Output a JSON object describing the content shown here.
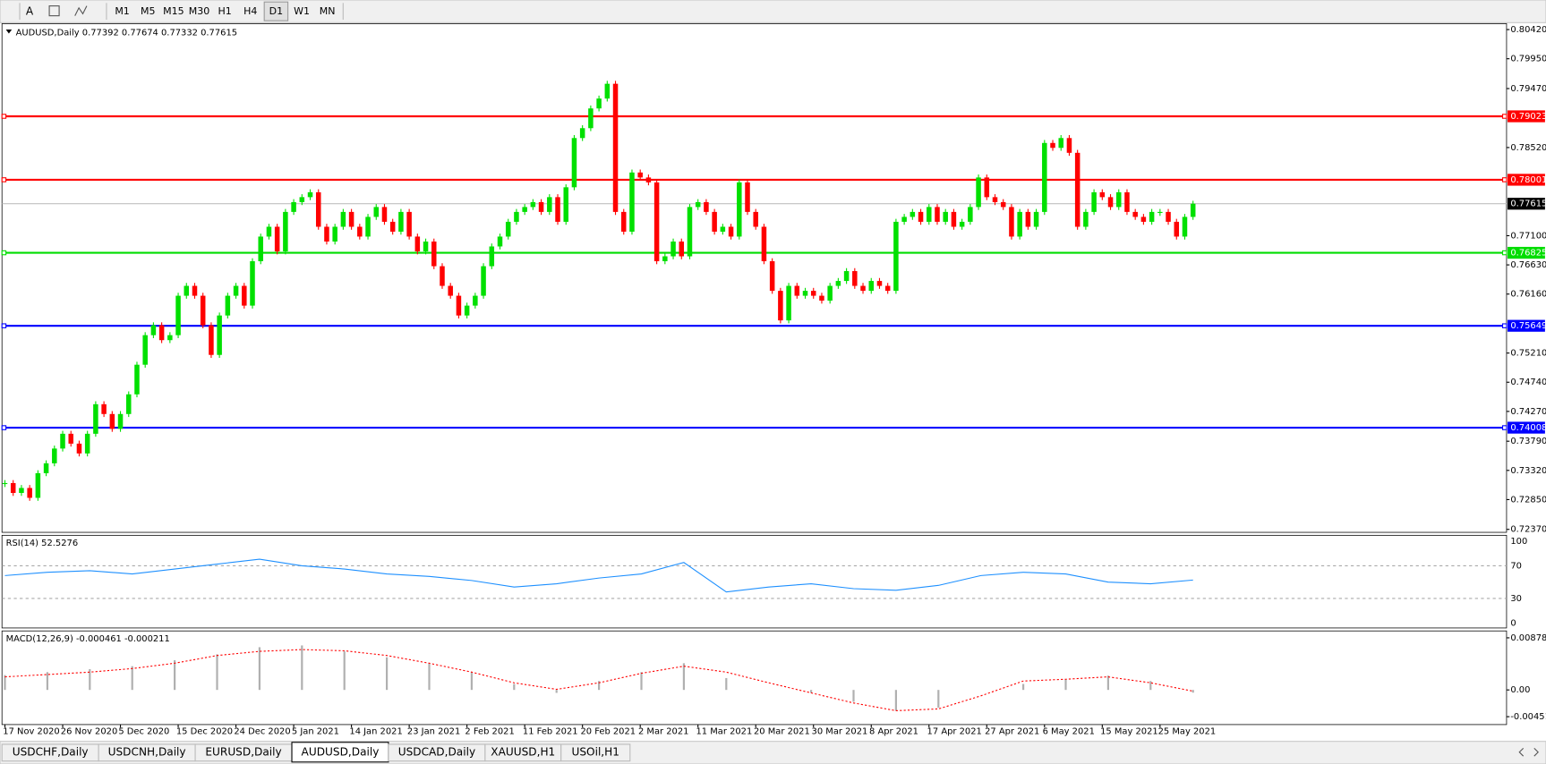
{
  "toolbar": {
    "tools": [
      "A"
    ],
    "timeframes": [
      "M1",
      "M5",
      "M15",
      "M30",
      "H1",
      "H4",
      "D1",
      "W1",
      "MN"
    ],
    "active": 6
  },
  "chart": {
    "header": "AUDUSD,Daily  0.77392 0.77674 0.77332 0.77615",
    "ylim": [
      0.7237,
      0.8042
    ],
    "yticks": [
      {
        "value": 0.8042,
        "label": "0.80420"
      },
      {
        "value": 0.7995,
        "label": "0.79950"
      },
      {
        "value": 0.7947,
        "label": "0.79470"
      },
      {
        "value": 0.7852,
        "label": "0.78520"
      },
      {
        "value": 0.771,
        "label": "0.77100"
      },
      {
        "value": 0.7663,
        "label": "0.76630"
      },
      {
        "value": 0.7616,
        "label": "0.76160"
      },
      {
        "value": 0.7521,
        "label": "0.75210"
      },
      {
        "value": 0.7474,
        "label": "0.74740"
      },
      {
        "value": 0.7427,
        "label": "0.74270"
      },
      {
        "value": 0.7379,
        "label": "0.73790"
      },
      {
        "value": 0.7332,
        "label": "0.73320"
      },
      {
        "value": 0.7285,
        "label": "0.72850"
      },
      {
        "value": 0.7237,
        "label": "0.72370"
      }
    ],
    "levels": [
      {
        "value": 0.79023,
        "color": "#ff0000"
      },
      {
        "value": 0.78001,
        "color": "#ff0000"
      },
      {
        "value": 0.76825,
        "color": "#00dd00"
      },
      {
        "value": 0.75649,
        "color": "#0000ff"
      },
      {
        "value": 0.74008,
        "color": "#0000ff"
      }
    ],
    "current": 0.77615,
    "candles": [
      0.73116,
      0.72957,
      0.73037,
      0.72878,
      0.73275,
      0.73434,
      0.73672,
      0.7391,
      0.73751,
      0.73593,
      0.7391,
      0.74386,
      0.74228,
      0.73989,
      0.74228,
      0.74545,
      0.75022,
      0.75498,
      0.75657,
      0.75418,
      0.75498,
      0.76133,
      0.76292,
      0.76133,
      0.75657,
      0.7518,
      0.75815,
      0.76133,
      0.76292,
      0.75974,
      0.76689,
      0.77086,
      0.77244,
      0.76847,
      0.77483,
      0.77641,
      0.77721,
      0.778,
      0.77244,
      0.77006,
      0.77244,
      0.77483,
      0.77244,
      0.77086,
      0.77403,
      0.77562,
      0.77324,
      0.77165,
      0.77483,
      0.77086,
      0.76847,
      0.77006,
      0.76609,
      0.76292,
      0.76133,
      0.75815,
      0.75974,
      0.76133,
      0.76609,
      0.76927,
      0.77086,
      0.77324,
      0.77483,
      0.77562,
      0.77641,
      0.77483,
      0.77721,
      0.77324,
      0.7788,
      0.78673,
      0.78832,
      0.7915,
      0.79309,
      0.79547,
      0.77483,
      0.77165,
      0.78118,
      0.78038,
      0.77959,
      0.76689,
      0.76768,
      0.77006,
      0.76768,
      0.77562,
      0.77641,
      0.77483,
      0.77165,
      0.77244,
      0.77086,
      0.77959,
      0.77483,
      0.77244,
      0.76689,
      0.76212,
      0.75736,
      0.76292,
      0.76133,
      0.76212,
      0.76133,
      0.76054,
      0.76292,
      0.76371,
      0.7653,
      0.76292,
      0.76212,
      0.76371,
      0.76292,
      0.76212,
      0.77324,
      0.77403,
      0.77483,
      0.77324,
      0.77562,
      0.77324,
      0.77483,
      0.77244,
      0.77324,
      0.77562,
      0.78038,
      0.77721,
      0.77641,
      0.77562,
      0.77086,
      0.77483,
      0.77244,
      0.77483,
      0.78594,
      0.78515,
      0.78673,
      0.78435,
      0.77244,
      0.77483,
      0.778,
      0.77721,
      0.77562,
      0.778,
      0.77483,
      0.77403,
      0.77324,
      0.77483,
      0.77483,
      0.77324,
      0.77086,
      0.77403,
      0.77615
    ],
    "dates": [
      "17 Nov 2020",
      "26 Nov 2020",
      "5 Dec 2020",
      "15 Dec 2020",
      "24 Dec 2020",
      "5 Jan 2021",
      "14 Jan 2021",
      "23 Jan 2021",
      "2 Feb 2021",
      "11 Feb 2021",
      "20 Feb 2021",
      "2 Mar 2021",
      "11 Mar 2021",
      "20 Mar 2021",
      "30 Mar 2021",
      "8 Apr 2021",
      "17 Apr 2021",
      "27 Apr 2021",
      "6 May 2021",
      "15 May 2021",
      "25 May 2021"
    ]
  },
  "rsi": {
    "header": "RSI(14) 52.5276",
    "ylim": [
      0,
      100
    ],
    "yticks": [
      100,
      70,
      30,
      0
    ],
    "levels": [
      70,
      30
    ],
    "values": [
      58,
      62,
      64,
      60,
      66,
      72,
      78,
      70,
      66,
      60,
      57,
      52,
      44,
      48,
      55,
      60,
      74,
      38,
      44,
      48,
      42,
      40,
      46,
      58,
      62,
      60,
      50,
      48,
      52.5276
    ]
  },
  "macd": {
    "header": "MACD(12,26,9) -0.000461 -0.000211",
    "ylim": [
      -0.00451,
      0.008782
    ],
    "yticks": [
      {
        "value": 0.008782,
        "label": "0.008782"
      },
      {
        "value": 0,
        "label": "0.00"
      },
      {
        "value": -0.00451,
        "label": "-0.00451"
      }
    ],
    "histogram": [
      0.0025,
      0.003,
      0.0035,
      0.004,
      0.005,
      0.006,
      0.0072,
      0.0075,
      0.0065,
      0.0055,
      0.0045,
      0.003,
      0.001,
      -0.0005,
      0.0015,
      0.003,
      0.0045,
      0.002,
      0,
      -0.0005,
      -0.002,
      -0.0035,
      -0.003,
      0,
      0.001,
      0.0018,
      0.0024,
      0.0015,
      -0.000461
    ],
    "signal": [
      0.0022,
      0.0026,
      0.003,
      0.0036,
      0.0045,
      0.0058,
      0.0065,
      0.0068,
      0.0066,
      0.0058,
      0.0045,
      0.003,
      0.0012,
      0.0001,
      0.0012,
      0.0028,
      0.004,
      0.003,
      0.0012,
      -0.0005,
      -0.0022,
      -0.0035,
      -0.0032,
      -0.001,
      0.0015,
      0.0018,
      0.0022,
      0.0012,
      -0.000211
    ]
  },
  "tabs": {
    "items": [
      "USDCHF,Daily",
      "USDCNH,Daily",
      "EURUSD,Daily",
      "AUDUSD,Daily",
      "USDCAD,Daily",
      "XAUUSD,H1",
      "USOil,H1"
    ],
    "active": 3
  }
}
